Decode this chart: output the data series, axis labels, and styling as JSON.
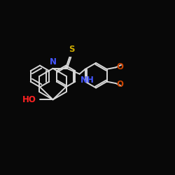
{
  "bg_color": "#080808",
  "bond_color": "#d8d8d8",
  "bond_width": 1.4,
  "atom_colors": {
    "N": "#4455ff",
    "S": "#ccaa00",
    "O": "#cc4400",
    "HO": "#ff2222",
    "NH": "#4455ff"
  }
}
